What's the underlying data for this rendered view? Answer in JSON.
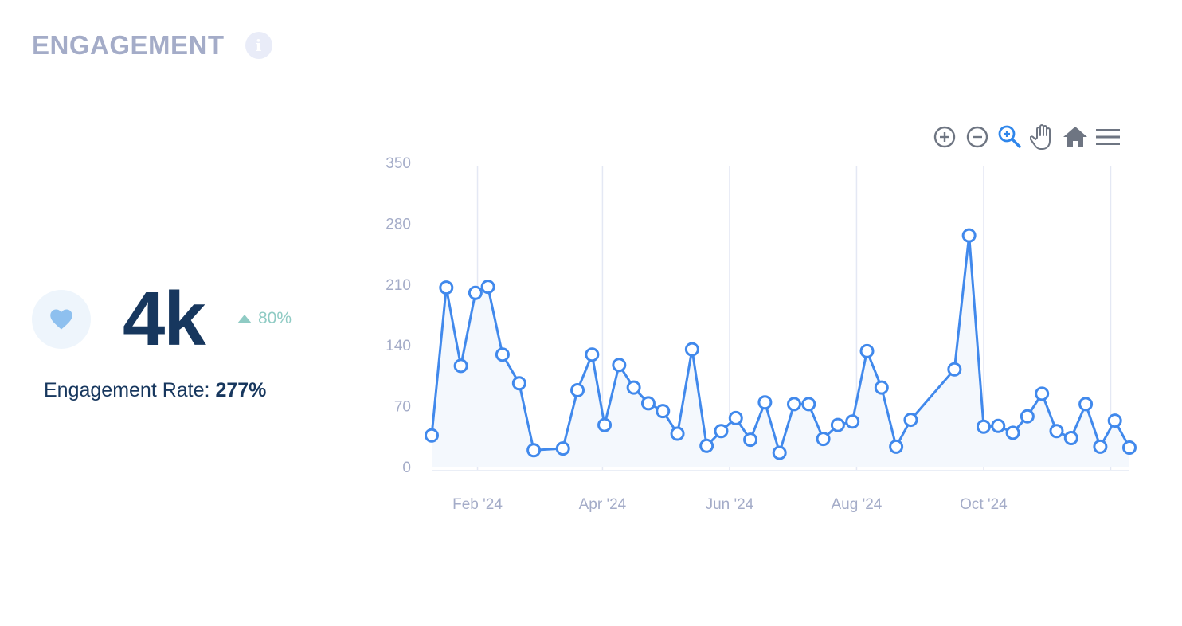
{
  "header": {
    "title": "ENGAGEMENT",
    "info_icon": "info-icon"
  },
  "kpi": {
    "icon": "heart-icon",
    "value": "4k",
    "delta": "80%",
    "delta_direction": "up",
    "rate_label": "Engagement Rate:",
    "rate_value": "277%"
  },
  "toolbar": {
    "icons": [
      "zoom-in-icon",
      "zoom-out-icon",
      "selection-zoom-icon",
      "pan-icon",
      "reset-home-icon",
      "menu-icon"
    ],
    "active": "selection-zoom-icon"
  },
  "colors": {
    "title": "#a4acc8",
    "value": "#17375e",
    "delta": "#8fcbc4",
    "line": "#4189ec",
    "area": "#f4f8fd",
    "grid": "#e4e8f4",
    "icon": "#6e7582",
    "active_icon": "#2f86eb"
  },
  "chart_data": {
    "type": "line",
    "title": "",
    "xlabel": "",
    "ylabel": "",
    "ylim": [
      0,
      350
    ],
    "yticks": [
      0,
      70,
      140,
      210,
      280,
      350
    ],
    "x_ticks": [
      {
        "label": "Feb '24",
        "date": "2024-02-01"
      },
      {
        "label": "Apr '24",
        "date": "2024-04-01"
      },
      {
        "label": "Jun '24",
        "date": "2024-06-01"
      },
      {
        "label": "Aug '24",
        "date": "2024-08-01"
      },
      {
        "label": "Oct '24",
        "date": "2024-10-01"
      },
      {
        "label": "",
        "date": "2024-12-01"
      }
    ],
    "x_range": [
      "2024-01-10",
      "2024-12-10"
    ],
    "grid": "vertical",
    "legend": "none",
    "series": [
      {
        "name": "",
        "points": [
          [
            "2024-01-10",
            36
          ],
          [
            "2024-01-17",
            206
          ],
          [
            "2024-01-24",
            116
          ],
          [
            "2024-01-31",
            200
          ],
          [
            "2024-02-06",
            207
          ],
          [
            "2024-02-13",
            129
          ],
          [
            "2024-02-21",
            96
          ],
          [
            "2024-02-28",
            19
          ],
          [
            "2024-03-13",
            21
          ],
          [
            "2024-03-20",
            88
          ],
          [
            "2024-03-27",
            129
          ],
          [
            "2024-04-02",
            48
          ],
          [
            "2024-04-09",
            117
          ],
          [
            "2024-04-16",
            91
          ],
          [
            "2024-04-23",
            73
          ],
          [
            "2024-04-30",
            64
          ],
          [
            "2024-05-07",
            38
          ],
          [
            "2024-05-14",
            135
          ],
          [
            "2024-05-21",
            24
          ],
          [
            "2024-05-28",
            41
          ],
          [
            "2024-06-04",
            56
          ],
          [
            "2024-06-11",
            31
          ],
          [
            "2024-06-18",
            74
          ],
          [
            "2024-06-25",
            16
          ],
          [
            "2024-07-02",
            72
          ],
          [
            "2024-07-09",
            72
          ],
          [
            "2024-07-16",
            32
          ],
          [
            "2024-07-23",
            48
          ],
          [
            "2024-07-30",
            52
          ],
          [
            "2024-08-06",
            133
          ],
          [
            "2024-08-13",
            91
          ],
          [
            "2024-08-20",
            23
          ],
          [
            "2024-08-27",
            54
          ],
          [
            "2024-09-17",
            112
          ],
          [
            "2024-09-24",
            266
          ],
          [
            "2024-10-01",
            46
          ],
          [
            "2024-10-08",
            47
          ],
          [
            "2024-10-15",
            39
          ],
          [
            "2024-10-22",
            58
          ],
          [
            "2024-10-29",
            84
          ],
          [
            "2024-11-05",
            41
          ],
          [
            "2024-11-12",
            33
          ],
          [
            "2024-11-19",
            72
          ],
          [
            "2024-11-26",
            23
          ],
          [
            "2024-12-03",
            53
          ],
          [
            "2024-12-10",
            22
          ]
        ]
      }
    ]
  }
}
